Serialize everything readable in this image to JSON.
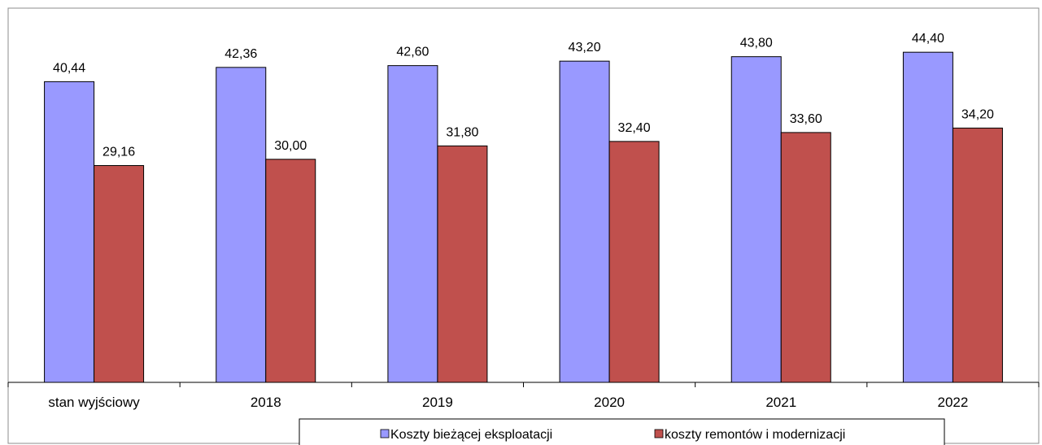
{
  "chart_data": {
    "type": "bar",
    "categories": [
      "stan wyjściowy",
      "2018",
      "2019",
      "2020",
      "2021",
      "2022"
    ],
    "series": [
      {
        "name": "Koszty bieżącej eksploatacji",
        "color": "#9999ff",
        "values": [
          40.44,
          42.36,
          42.6,
          43.2,
          43.8,
          44.4
        ],
        "labels": [
          "40,44",
          "42,36",
          "42,60",
          "43,20",
          "43,80",
          "44,40"
        ]
      },
      {
        "name": "koszty remontów i modernizacji",
        "color": "#c0504d",
        "values": [
          29.16,
          30.0,
          31.8,
          32.4,
          33.6,
          34.2
        ],
        "labels": [
          "29,16",
          "30,00",
          "31,80",
          "32,40",
          "33,60",
          "34,20"
        ]
      }
    ],
    "ylim": [
      0,
      50
    ],
    "grid": false,
    "legend_position": "bottom"
  }
}
